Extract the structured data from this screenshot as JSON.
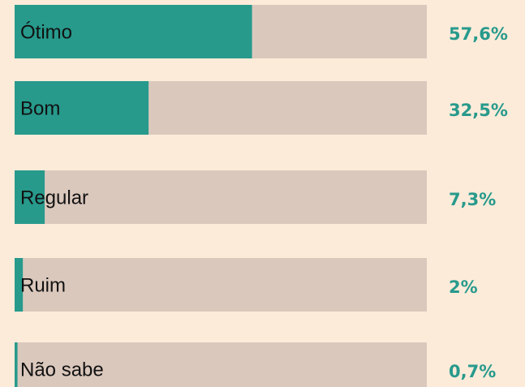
{
  "chart_data": {
    "type": "barh",
    "categories": [
      "Ótimo",
      "Bom",
      "Regular",
      "Ruim",
      "Não sabe"
    ],
    "values": [
      57.6,
      32.5,
      7.3,
      2,
      0.7
    ],
    "value_labels": [
      "57,6%",
      "32,5%",
      "7,3%",
      "2%",
      "0,7%"
    ],
    "color": "#279a8c",
    "track_color": "#dbc8bd",
    "xlim": [
      0,
      100
    ]
  }
}
